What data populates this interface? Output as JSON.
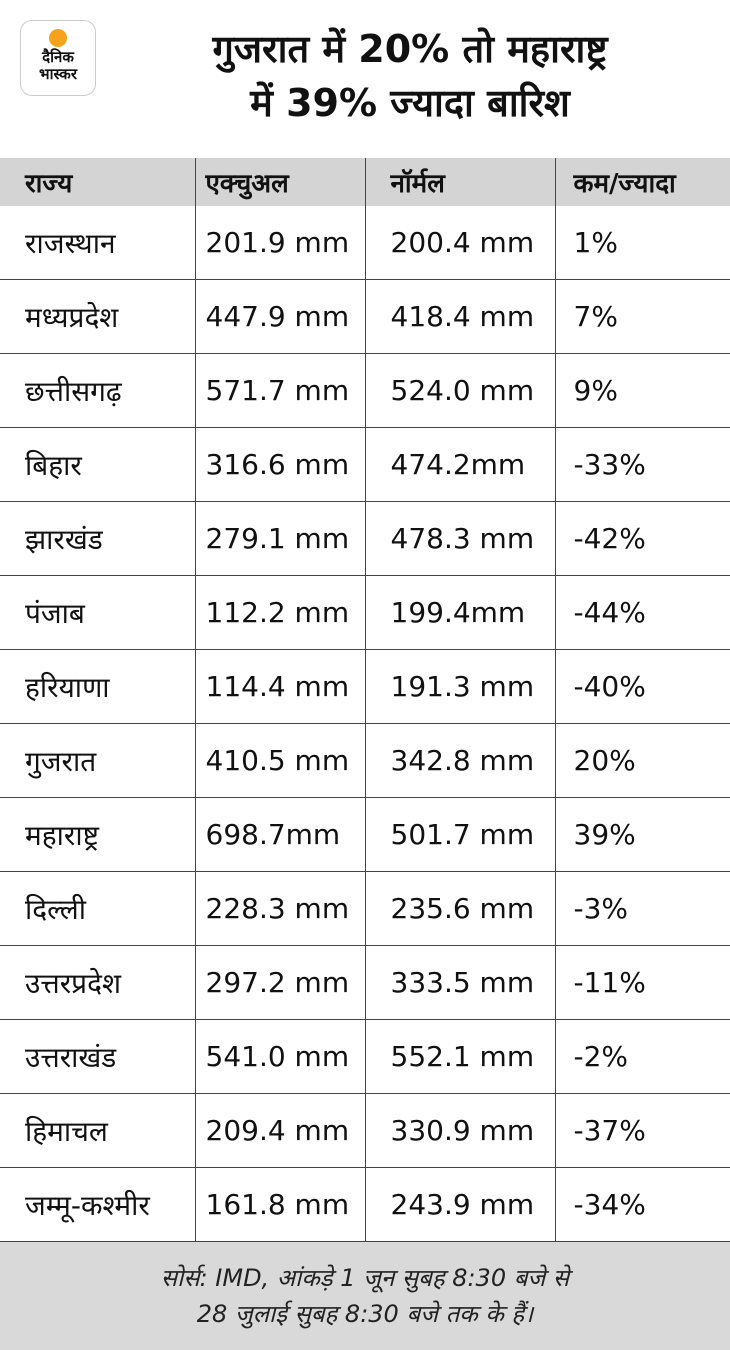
{
  "logo": {
    "lines": [
      "दैनिक",
      "भास्कर"
    ]
  },
  "header": {
    "title_lines": [
      "गुजरात में 20% तो महाराष्ट्र",
      "में 39% ज्यादा बारिश"
    ]
  },
  "table": {
    "columns": [
      "राज्य",
      "एक्चुअल",
      "नॉर्मल",
      "कम/ज्यादा"
    ],
    "rows": [
      [
        "राजस्थान",
        "201.9 mm",
        "200.4 mm",
        "1%"
      ],
      [
        "मध्यप्रदेश",
        "447.9 mm",
        "418.4 mm",
        "7%"
      ],
      [
        "छत्तीसगढ़",
        "571.7 mm",
        "524.0 mm",
        "9%"
      ],
      [
        "बिहार",
        "316.6 mm",
        "474.2mm",
        "-33%"
      ],
      [
        "झारखंड",
        "279.1 mm",
        "478.3 mm",
        "-42%"
      ],
      [
        "पंजाब",
        "112.2 mm",
        "199.4mm",
        "-44%"
      ],
      [
        "हरियाणा",
        "114.4 mm",
        "191.3 mm",
        "-40%"
      ],
      [
        "गुजरात",
        "410.5 mm",
        "342.8 mm",
        "20%"
      ],
      [
        "महाराष्ट्र",
        "698.7mm",
        "501.7 mm",
        "39%"
      ],
      [
        "दिल्ली",
        "228.3 mm",
        "235.6 mm",
        "-3%"
      ],
      [
        "उत्तरप्रदेश",
        "297.2 mm",
        "333.5 mm",
        "-11%"
      ],
      [
        "उत्तराखंड",
        "541.0 mm",
        "552.1 mm",
        "-2%"
      ],
      [
        "हिमाचल",
        "209.4 mm",
        "330.9 mm",
        "-37%"
      ],
      [
        "जम्मू-कश्मीर",
        "161.8 mm",
        "243.9 mm",
        "-34%"
      ]
    ]
  },
  "footer": {
    "source_lines": [
      "सोर्स: IMD, आंकड़े 1 जून सुबह 8:30 बजे से",
      "28 जुलाई सुबह 8:30 बजे तक के हैं।"
    ]
  }
}
